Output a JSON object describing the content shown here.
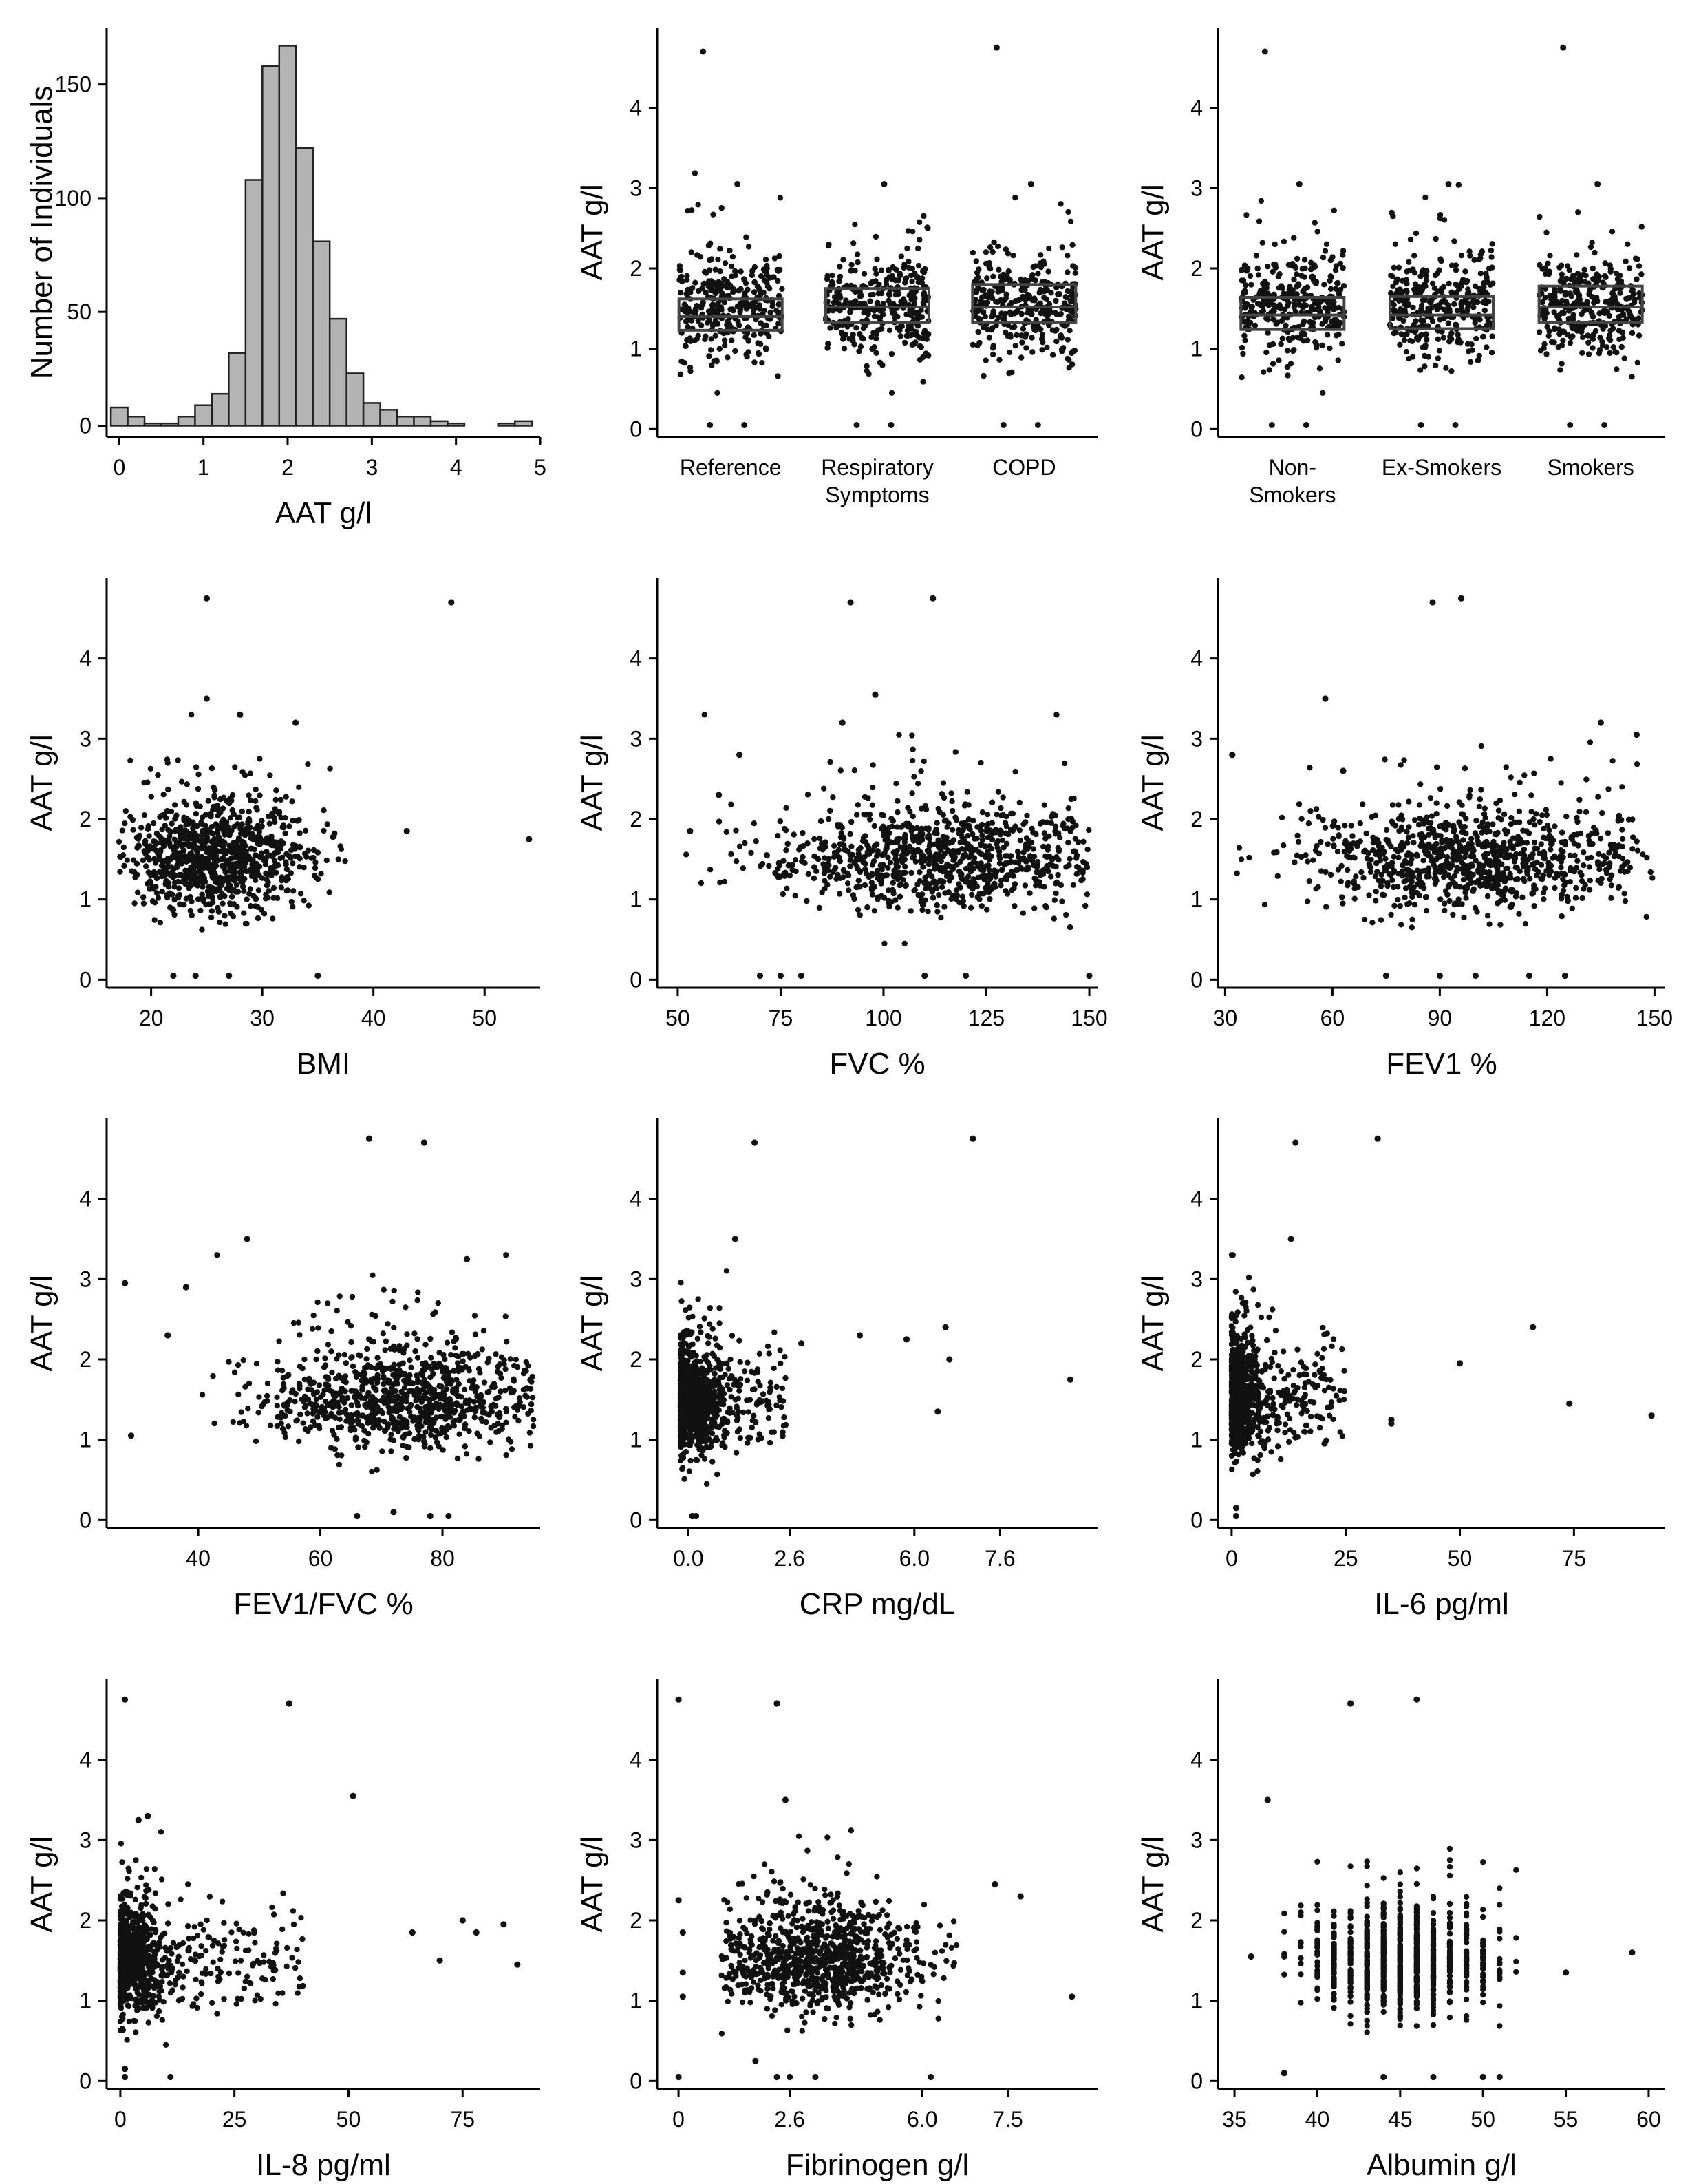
{
  "figure": {
    "colors": {
      "points": "#111111",
      "bars": "#b4b4b4",
      "outline": "#222222"
    }
  },
  "chart_data": [
    {
      "id": "hist",
      "type": "bar",
      "title": "",
      "xlabel": "AAT g/l",
      "ylabel": "Number of Individuals",
      "xlim": [
        -0.15,
        5.0
      ],
      "ylim": [
        -5,
        175
      ],
      "xticks": [
        "0",
        "1",
        "2",
        "3",
        "4",
        "5"
      ],
      "yticks": [
        "0",
        "50",
        "100",
        "150"
      ],
      "bin_width": 0.2,
      "bin_starts": [
        -0.1,
        0.1,
        0.3,
        0.5,
        0.7,
        0.9,
        1.1,
        1.3,
        1.5,
        1.7,
        1.9,
        2.1,
        2.3,
        2.5,
        2.7,
        2.9,
        3.1,
        3.3,
        3.5,
        3.7,
        3.9,
        4.1,
        4.3,
        4.5,
        4.7
      ],
      "values": [
        8,
        4,
        1,
        1,
        4,
        9,
        14,
        32,
        108,
        158,
        167,
        122,
        81,
        47,
        23,
        10,
        7,
        4,
        4,
        2,
        1,
        0,
        0,
        1,
        2
      ],
      "grid": false
    },
    {
      "id": "group",
      "type": "scatter",
      "xlabel": "",
      "ylabel": "AAT g/l",
      "ylim": [
        -0.1,
        5.0
      ],
      "yticks": [
        "0",
        "1",
        "2",
        "3",
        "4"
      ],
      "categories": [
        [
          "Reference"
        ],
        [
          "Respiratory",
          "Symptoms"
        ],
        [
          "COPD"
        ]
      ],
      "boxes": [
        {
          "q1": 1.23,
          "median": 1.4,
          "q3": 1.62
        },
        {
          "q1": 1.33,
          "median": 1.52,
          "q3": 1.75
        },
        {
          "q1": 1.33,
          "median": 1.52,
          "q3": 1.8
        }
      ],
      "grid": false
    },
    {
      "id": "smoking",
      "type": "scatter",
      "xlabel": "",
      "ylabel": "AAT g/l",
      "ylim": [
        -0.1,
        5.0
      ],
      "yticks": [
        "0",
        "1",
        "2",
        "3",
        "4"
      ],
      "categories": [
        [
          "Non-",
          "Smokers"
        ],
        [
          "Ex-Smokers"
        ],
        [
          "Smokers"
        ]
      ],
      "boxes": [
        {
          "q1": 1.24,
          "median": 1.42,
          "q3": 1.64
        },
        {
          "q1": 1.25,
          "median": 1.42,
          "q3": 1.65
        },
        {
          "q1": 1.33,
          "median": 1.52,
          "q3": 1.78
        }
      ],
      "grid": false
    },
    {
      "id": "bmi",
      "type": "scatter",
      "xlabel": "BMI",
      "ylabel": "AAT g/l",
      "xlim": [
        16,
        55
      ],
      "ylim": [
        -0.1,
        5.0
      ],
      "xticks": [
        "20",
        "30",
        "40",
        "50"
      ],
      "yticks": [
        "0",
        "1",
        "2",
        "3",
        "4"
      ],
      "x_range": [
        17,
        38
      ],
      "x_center": 26,
      "outliers": [
        [
          25,
          4.75
        ],
        [
          47,
          4.7
        ],
        [
          54,
          1.75
        ],
        [
          43,
          1.85
        ],
        [
          33,
          3.2
        ],
        [
          28,
          3.3
        ],
        [
          25,
          3.5
        ],
        [
          22,
          0.05
        ],
        [
          27,
          0.05
        ],
        [
          35,
          0.05
        ],
        [
          24,
          0.05
        ]
      ],
      "grid": false
    },
    {
      "id": "fvc",
      "type": "scatter",
      "xlabel": "FVC %",
      "ylabel": "AAT g/l",
      "xlim": [
        45,
        152
      ],
      "ylim": [
        -0.1,
        5.0
      ],
      "xticks": [
        "50",
        "75",
        "100",
        "125",
        "150"
      ],
      "yticks": [
        "0",
        "1",
        "2",
        "3",
        "4"
      ],
      "x_range": [
        48,
        150
      ],
      "x_center": 112,
      "outliers": [
        [
          92,
          4.7
        ],
        [
          112,
          4.75
        ],
        [
          98,
          3.55
        ],
        [
          90,
          3.2
        ],
        [
          53,
          1.85
        ],
        [
          60,
          2.3
        ],
        [
          65,
          2.8
        ],
        [
          70,
          0.05
        ],
        [
          75,
          0.05
        ],
        [
          80,
          0.05
        ],
        [
          110,
          0.05
        ],
        [
          120,
          0.05
        ],
        [
          150,
          0.05
        ]
      ],
      "grid": false
    },
    {
      "id": "fev1",
      "type": "scatter",
      "xlabel": "FEV1 %",
      "ylabel": "AAT g/l",
      "xlim": [
        28,
        153
      ],
      "ylim": [
        -0.1,
        5.0
      ],
      "xticks": [
        "30",
        "60",
        "90",
        "120",
        "150"
      ],
      "yticks": [
        "0",
        "1",
        "2",
        "3",
        "4"
      ],
      "x_range": [
        33,
        150
      ],
      "x_center": 100,
      "outliers": [
        [
          88,
          4.7
        ],
        [
          96,
          4.75
        ],
        [
          58,
          3.5
        ],
        [
          32,
          2.8
        ],
        [
          63,
          2.6
        ],
        [
          135,
          3.2
        ],
        [
          145,
          3.05
        ],
        [
          75,
          0.05
        ],
        [
          90,
          0.05
        ],
        [
          100,
          0.05
        ],
        [
          115,
          0.05
        ],
        [
          125,
          0.05
        ]
      ],
      "grid": false
    },
    {
      "id": "ratio",
      "type": "scatter",
      "xlabel": "FEV1/FVC %",
      "ylabel": "AAT g/l",
      "xlim": [
        25,
        96
      ],
      "ylim": [
        -0.1,
        5.0
      ],
      "xticks": [
        "40",
        "60",
        "80"
      ],
      "yticks": [
        "0",
        "1",
        "2",
        "3",
        "4"
      ],
      "x_range": [
        40,
        95
      ],
      "x_center": 73,
      "outliers": [
        [
          68,
          4.75
        ],
        [
          77,
          4.7
        ],
        [
          48,
          3.5
        ],
        [
          28,
          2.95
        ],
        [
          29,
          1.05
        ],
        [
          35,
          2.3
        ],
        [
          38,
          2.9
        ],
        [
          84,
          3.25
        ],
        [
          66,
          0.05
        ],
        [
          72,
          0.1
        ],
        [
          78,
          0.05
        ],
        [
          81,
          0.05
        ]
      ],
      "grid": false
    },
    {
      "id": "crp",
      "type": "scatter",
      "xlabel": "CRP mg/dL",
      "ylabel": "AAT g/l",
      "xlim": [
        -0.8,
        10.5
      ],
      "ylim": [
        -0.1,
        5.0
      ],
      "xticks": [
        "0.0",
        "2.6",
        "6.0",
        "7.6"
      ],
      "tick_positions": [
        0,
        2.6,
        5.8,
        8.0
      ],
      "yticks": [
        "0",
        "1",
        "2",
        "3",
        "4"
      ],
      "x_range": [
        -0.2,
        2.5
      ],
      "x_center": 0.25,
      "skew": true,
      "outliers": [
        [
          1.7,
          4.7
        ],
        [
          7.3,
          4.75
        ],
        [
          1.2,
          3.5
        ],
        [
          5.6,
          2.25
        ],
        [
          6.6,
          2.4
        ],
        [
          9.8,
          1.75
        ],
        [
          6.7,
          2.0
        ],
        [
          6.4,
          1.35
        ],
        [
          0.1,
          0.05
        ],
        [
          0.2,
          0.05
        ],
        [
          2.9,
          2.2
        ],
        [
          4.4,
          2.3
        ]
      ],
      "grid": false
    },
    {
      "id": "il6",
      "type": "scatter",
      "xlabel": "IL-6 pg/ml",
      "ylabel": "AAT g/l",
      "xlim": [
        -3,
        95
      ],
      "ylim": [
        -0.1,
        5.0
      ],
      "xticks": [
        "0",
        "25",
        "50",
        "75"
      ],
      "yticks": [
        "0",
        "1",
        "2",
        "3",
        "4"
      ],
      "x_range": [
        0,
        25
      ],
      "x_center": 2,
      "skew": true,
      "outliers": [
        [
          14,
          4.7
        ],
        [
          32,
          4.75
        ],
        [
          13,
          3.5
        ],
        [
          66,
          2.4
        ],
        [
          50,
          1.95
        ],
        [
          74,
          1.45
        ],
        [
          92,
          1.3
        ],
        [
          35,
          1.2
        ],
        [
          35,
          1.25
        ],
        [
          1,
          0.05
        ],
        [
          1,
          0.15
        ]
      ],
      "grid": false
    },
    {
      "id": "il8",
      "type": "scatter",
      "xlabel": "IL-8 pg/ml",
      "ylabel": "AAT g/l",
      "xlim": [
        -3,
        92
      ],
      "ylim": [
        -0.1,
        5.0
      ],
      "xticks": [
        "0",
        "25",
        "50",
        "75"
      ],
      "yticks": [
        "0",
        "1",
        "2",
        "3",
        "4"
      ],
      "x_range": [
        0,
        40
      ],
      "x_center": 3,
      "skew": true,
      "outliers": [
        [
          1,
          4.75
        ],
        [
          37,
          4.7
        ],
        [
          51,
          3.55
        ],
        [
          4,
          3.25
        ],
        [
          6,
          3.3
        ],
        [
          64,
          1.85
        ],
        [
          70,
          1.5
        ],
        [
          75,
          2.0
        ],
        [
          78,
          1.85
        ],
        [
          84,
          1.95
        ],
        [
          87,
          1.45
        ],
        [
          1,
          0.05
        ],
        [
          1,
          0.15
        ],
        [
          11,
          0.05
        ]
      ],
      "grid": false
    },
    {
      "id": "fib",
      "type": "scatter",
      "xlabel": "Fibrinogen g/l",
      "ylabel": "AAT g/l",
      "xlim": [
        -0.5,
        9.8
      ],
      "ylim": [
        -0.1,
        5.0
      ],
      "xticks": [
        "0",
        "2.6",
        "6.0",
        "7.5"
      ],
      "tick_positions": [
        0,
        2.6,
        5.7,
        7.7
      ],
      "yticks": [
        "0",
        "1",
        "2",
        "3",
        "4"
      ],
      "x_range": [
        1.0,
        7.0
      ],
      "x_center": 3.3,
      "outliers": [
        [
          0,
          4.75
        ],
        [
          2.3,
          4.7
        ],
        [
          2.5,
          3.5
        ],
        [
          0,
          2.25
        ],
        [
          0.1,
          1.85
        ],
        [
          0.1,
          1.35
        ],
        [
          0.1,
          1.05
        ],
        [
          8.0,
          2.3
        ],
        [
          7.4,
          2.45
        ],
        [
          9.2,
          1.05
        ],
        [
          0,
          0.05
        ],
        [
          2.3,
          0.05
        ],
        [
          2.6,
          0.05
        ],
        [
          3.2,
          0.05
        ],
        [
          5.9,
          0.05
        ],
        [
          1.8,
          0.25
        ]
      ],
      "grid": false
    },
    {
      "id": "alb",
      "type": "scatter",
      "xlabel": "Albumin g/l",
      "ylabel": "AAT g/l",
      "xlim": [
        34,
        61
      ],
      "ylim": [
        -0.1,
        5.0
      ],
      "xticks": [
        "35",
        "40",
        "45",
        "50",
        "55",
        "60"
      ],
      "yticks": [
        "0",
        "1",
        "2",
        "3",
        "4"
      ],
      "x_range": [
        38,
        52
      ],
      "x_center": 45,
      "integer_x": true,
      "outliers": [
        [
          42,
          4.7
        ],
        [
          46,
          4.75
        ],
        [
          37,
          3.5
        ],
        [
          59,
          1.6
        ],
        [
          36,
          1.55
        ],
        [
          55,
          1.35
        ],
        [
          38,
          0.1
        ],
        [
          44,
          0.05
        ],
        [
          47,
          0.05
        ],
        [
          50,
          0.05
        ],
        [
          51,
          0.05
        ]
      ],
      "grid": false
    }
  ]
}
